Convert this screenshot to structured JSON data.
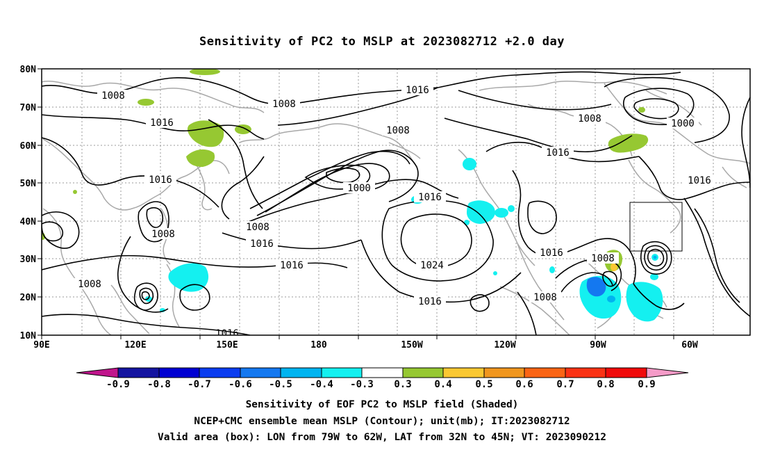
{
  "title": "Sensitivity of PC2 to MSLP at 2023082712 +2.0 day",
  "axes": {
    "lat_labels": [
      "80N",
      "70N",
      "60N",
      "50N",
      "40N",
      "30N",
      "20N",
      "10N"
    ],
    "lon_labels": [
      "90E",
      "120E",
      "150E",
      "180",
      "150W",
      "120W",
      "90W",
      "60W"
    ]
  },
  "contour_labels": {
    "c1": "1008",
    "c2": "1008",
    "c3": "1016",
    "c4": "1016",
    "c5": "1008",
    "c6": "1000",
    "c7": "1016",
    "c8": "1008",
    "c9": "1016",
    "c10": "1000",
    "c11": "1016",
    "c12": "1016",
    "c13": "1008",
    "c14": "1016",
    "c15": "1016",
    "c16": "1024",
    "c17": "1016",
    "c18": "1008",
    "c19": "1008",
    "c20": "1016",
    "c21": "1008",
    "c22": "1008",
    "c23": "1016"
  },
  "colorbar": {
    "labels": [
      "-0.9",
      "-0.8",
      "-0.7",
      "-0.6",
      "-0.5",
      "-0.4",
      "-0.3",
      "0.3",
      "0.4",
      "0.5",
      "0.6",
      "0.7",
      "0.8",
      "0.9"
    ],
    "colors": {
      "lt_-0.9": "#c0158c",
      "bins": [
        "#1414a0",
        "#0000d2",
        "#0a3cf0",
        "#1478f0",
        "#00b4f0",
        "#14f0f0",
        "#ffffff",
        "#96c832",
        "#fac832",
        "#f0961e",
        "#fa6414",
        "#fa3214",
        "#f00a0a"
      ],
      "gt_0.9": "#f59bc8"
    }
  },
  "captions": {
    "line1": "Sensitivity of EOF PC2 to MSLP field (Shaded)",
    "line2": "NCEP+CMC ensemble mean MSLP (Contour); unit(mb); IT:2023082712",
    "line3": "Valid area (box): LON from 79W to 62W, LAT from 32N to 45N; VT: 2023090212"
  }
}
